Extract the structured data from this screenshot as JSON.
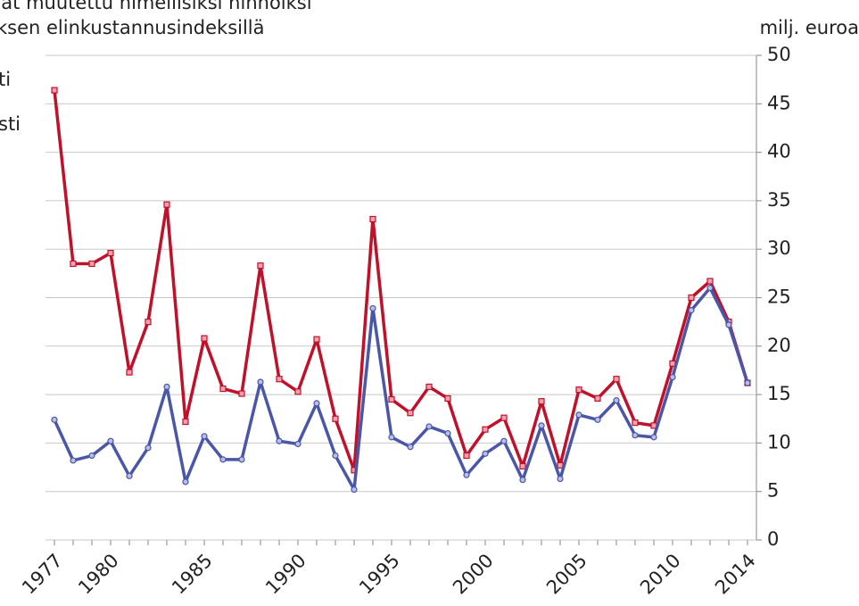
{
  "chart_data": {
    "type": "line",
    "title_lines": [
      "hat muutettu nimellisiksi hinnoiksi",
      "ksen  elinkustannusindeksillä"
    ],
    "y_axis_label": "milj. euroa",
    "x": [
      1977,
      1978,
      1979,
      1980,
      1981,
      1982,
      1983,
      1984,
      1985,
      1986,
      1987,
      1988,
      1989,
      1990,
      1991,
      1992,
      1993,
      1994,
      1995,
      1996,
      1997,
      1998,
      1999,
      2000,
      2001,
      2002,
      2003,
      2004,
      2005,
      2006,
      2007,
      2008,
      2009,
      2010,
      2011,
      2012,
      2013,
      2014
    ],
    "xlim": [
      1977,
      2014
    ],
    "xticks": [
      1977,
      1980,
      1985,
      1990,
      1995,
      2000,
      2005,
      2010,
      2014
    ],
    "ylim": [
      0,
      50
    ],
    "yticks": [
      0,
      5,
      10,
      15,
      20,
      25,
      30,
      35,
      40,
      45,
      50
    ],
    "grid": true,
    "series": [
      {
        "name": "ti",
        "color": "#c0102a",
        "marker": "square",
        "values": [
          46.4,
          28.5,
          28.5,
          29.6,
          17.3,
          22.5,
          34.6,
          12.2,
          20.8,
          15.6,
          15.1,
          28.3,
          16.6,
          15.3,
          20.7,
          12.5,
          7.2,
          33.1,
          14.5,
          13.1,
          15.8,
          14.6,
          8.7,
          11.4,
          12.6,
          7.6,
          14.3,
          7.7,
          15.5,
          14.6,
          16.6,
          12.1,
          11.8,
          18.2,
          25.0,
          26.7,
          22.5,
          16.2
        ]
      },
      {
        "name": "sti",
        "color": "#4a56a8",
        "marker": "circle",
        "values": [
          12.4,
          8.2,
          8.7,
          10.2,
          6.6,
          9.5,
          15.8,
          6.0,
          10.7,
          8.3,
          8.3,
          16.3,
          10.2,
          9.9,
          14.1,
          8.7,
          5.2,
          23.9,
          10.6,
          9.6,
          11.7,
          11.0,
          6.7,
          8.9,
          10.2,
          6.2,
          11.8,
          6.3,
          12.9,
          12.4,
          14.4,
          10.8,
          10.6,
          16.8,
          23.7,
          26.0,
          22.2,
          16.2
        ]
      }
    ]
  }
}
